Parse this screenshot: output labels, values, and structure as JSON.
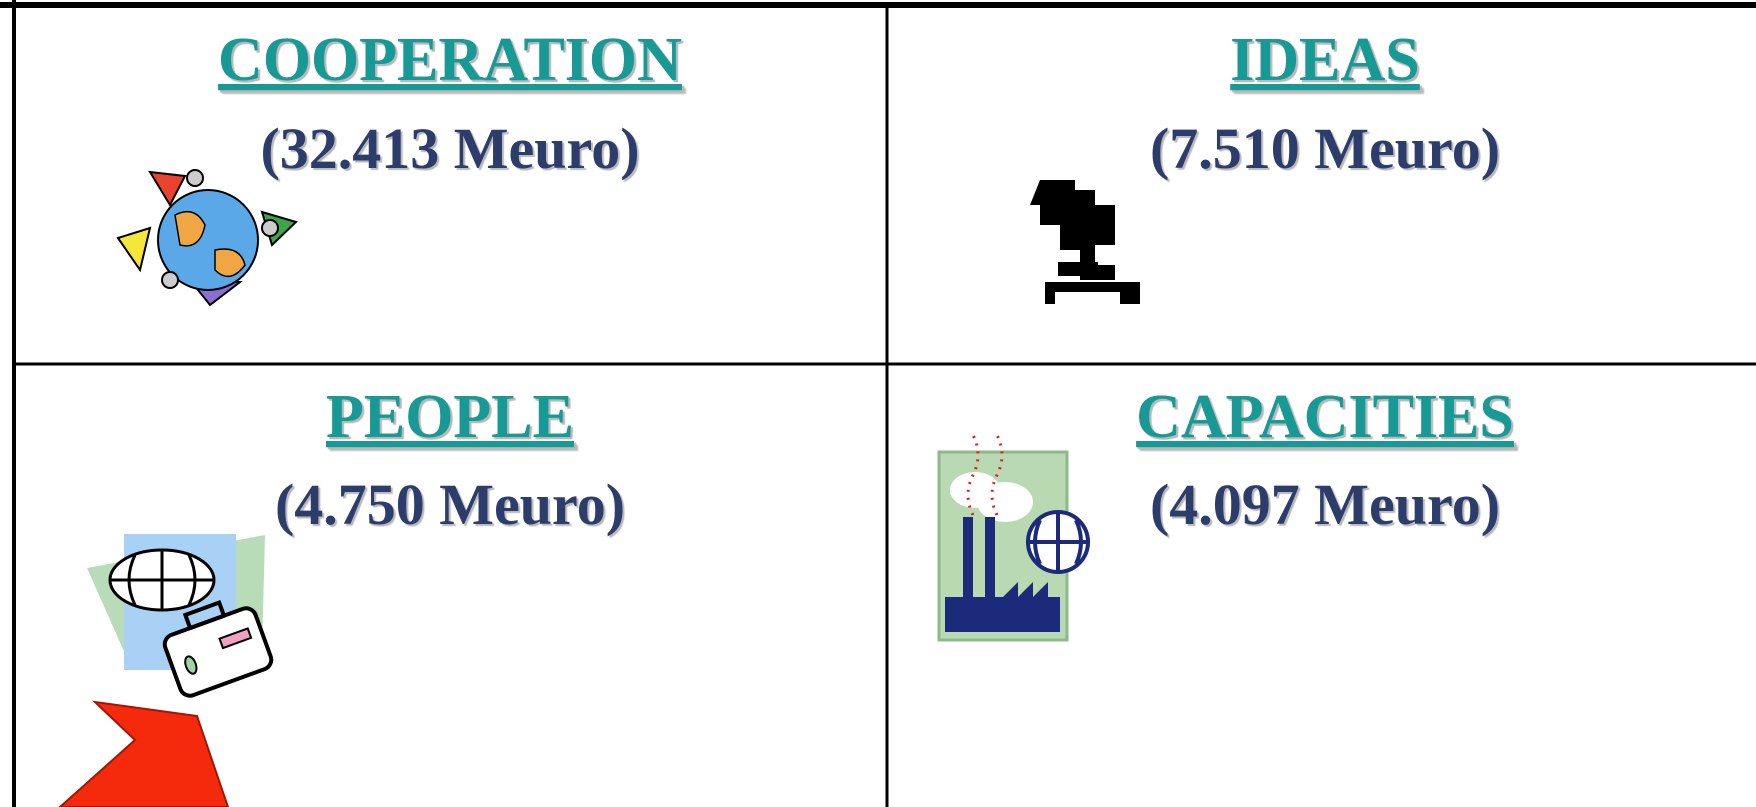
{
  "cells": [
    {
      "title": "COOPERATION",
      "amount": "(32.413 Meuro)"
    },
    {
      "title": "IDEAS",
      "amount": "(7.510 Meuro)"
    },
    {
      "title": "PEOPLE",
      "amount": "(4.750 Meuro)"
    },
    {
      "title": "CAPACITIES",
      "amount": "(4.097 Meuro)"
    }
  ]
}
